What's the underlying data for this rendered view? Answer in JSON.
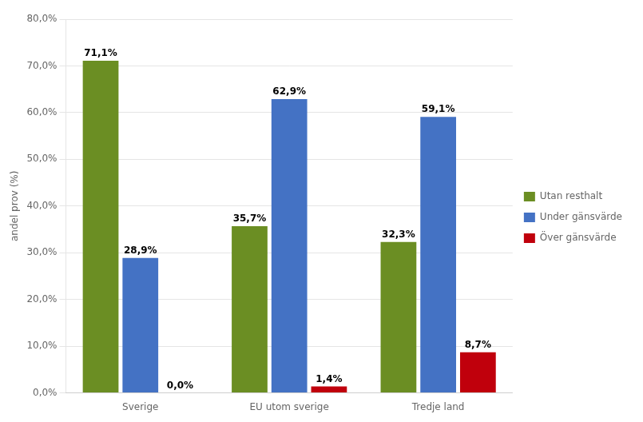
{
  "chart_data": {
    "type": "bar",
    "categories": [
      "Sverige",
      "EU utom sverige",
      "Tredje land"
    ],
    "series": [
      {
        "name": "Utan resthalt",
        "color": "#6B8E23",
        "values": [
          71.1,
          35.7,
          32.3
        ],
        "value_labels": [
          "71,1%",
          "35,7%",
          "32,3%"
        ]
      },
      {
        "name": "Under gänsvärde",
        "color": "#4472C4",
        "values": [
          28.9,
          62.9,
          59.1
        ],
        "value_labels": [
          "28,9%",
          "62,9%",
          "59,1%"
        ]
      },
      {
        "name": "Över gänsvärde",
        "color": "#C0000C",
        "values": [
          0.0,
          1.4,
          8.7
        ],
        "value_labels": [
          "0,0%",
          "1,4%",
          "8,7%"
        ]
      }
    ],
    "ylabel": "andel prov (%)",
    "ylim": [
      0,
      80
    ],
    "yticks": [
      {
        "value": 0,
        "label": "0,0%"
      },
      {
        "value": 10,
        "label": "10,0%"
      },
      {
        "value": 20,
        "label": "20,0%"
      },
      {
        "value": 30,
        "label": "30,0%"
      },
      {
        "value": 40,
        "label": "40,0%"
      },
      {
        "value": 50,
        "label": "50,0%"
      },
      {
        "value": 60,
        "label": "60,0%"
      },
      {
        "value": 70,
        "label": "70,0%"
      },
      {
        "value": 80,
        "label": "80,0%"
      }
    ],
    "grid": true,
    "legend": "right",
    "data_labels": true
  }
}
